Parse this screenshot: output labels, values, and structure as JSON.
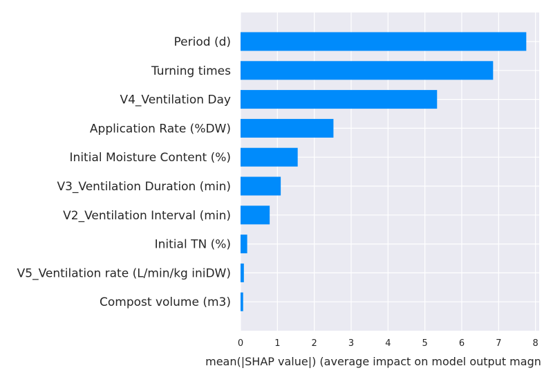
{
  "chart_data": {
    "type": "bar",
    "orientation": "horizontal",
    "title": "",
    "xlabel": "mean(|SHAP value|) (average impact on model output magn",
    "ylabel": "",
    "xlim": [
      0,
      8.1
    ],
    "xticks": [
      0,
      1,
      2,
      3,
      4,
      5,
      6,
      7,
      8
    ],
    "grid": true,
    "legend": "none",
    "bar_color": "#008bfb",
    "background_color": "#eaeaf2",
    "categories": [
      "Period (d)",
      "Turning times",
      "V4_Ventilation Day",
      "Application Rate (%DW)",
      "Initial Moisture Content (%)",
      "V3_Ventilation Duration (min)",
      "V2_Ventilation Interval (min)",
      "Initial TN (%)",
      "V5_Ventilation rate (L/min/kg iniDW)",
      "Compost volume (m3)"
    ],
    "values": [
      7.75,
      6.85,
      5.33,
      2.52,
      1.55,
      1.09,
      0.79,
      0.18,
      0.09,
      0.07
    ]
  }
}
